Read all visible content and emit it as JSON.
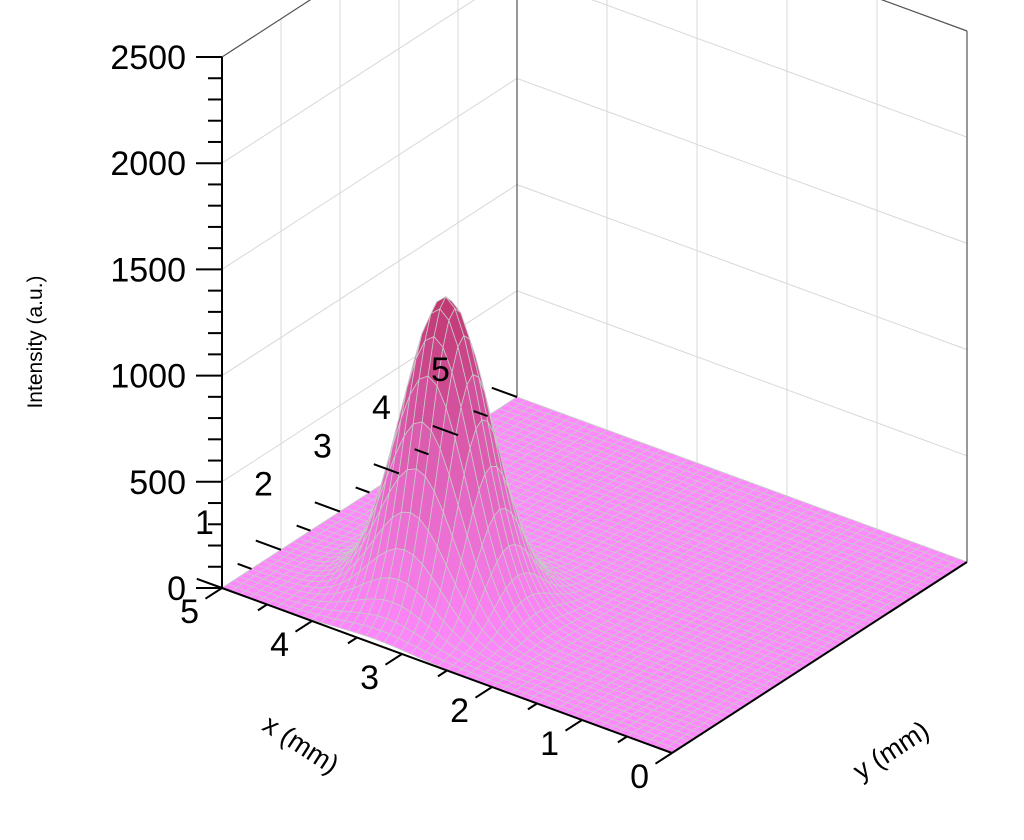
{
  "chart_data": {
    "type": "surface",
    "title": "",
    "xlabel": "x (mm)",
    "ylabel": "y (mm)",
    "zlabel": "Intensity (a.u.)",
    "xlim": [
      0,
      5
    ],
    "ylim": [
      0,
      5
    ],
    "zlim": [
      0,
      2500
    ],
    "x_ticks": [
      "1",
      "2",
      "3",
      "4",
      "5"
    ],
    "y_ticks": [
      "0",
      "1",
      "2",
      "3",
      "4",
      "5"
    ],
    "z_ticks": [
      "0",
      "500",
      "1000",
      "1500",
      "2000",
      "2500"
    ],
    "grid": true,
    "series": [
      {
        "kind": "gaussian-peak",
        "peak_intensity": 1420,
        "center_x": 1.2,
        "center_y": 3.3,
        "sigma_x": 0.42,
        "sigma_y": 0.42,
        "background": 0
      }
    ]
  },
  "colors": {
    "surface_low": "#ff88ff",
    "surface_high": "#c03870",
    "mesh": "#c8c8c8",
    "grid": "#d8d8d8",
    "axis": "#000000"
  }
}
